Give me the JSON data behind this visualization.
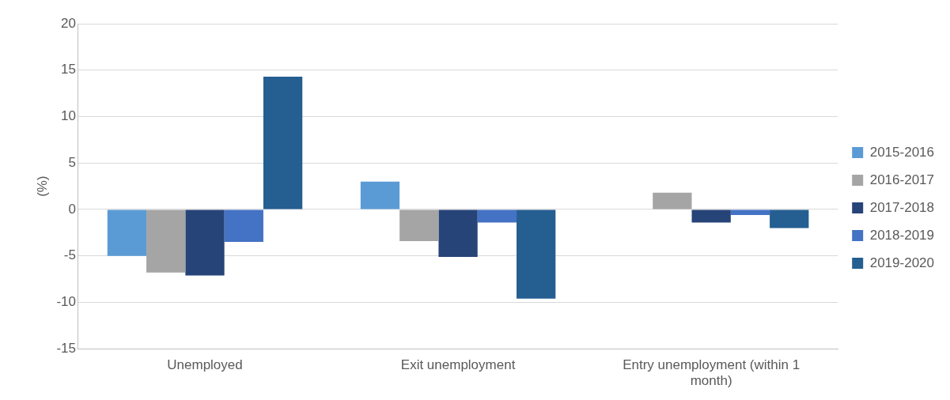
{
  "chart_data": {
    "type": "bar",
    "ylabel": "(%)",
    "categories": [
      "Unemployed",
      "Exit unemployment",
      "Entry unemployment (within 1 month)"
    ],
    "series": [
      {
        "name": "2015-2016",
        "color": "#5b9bd5",
        "values": [
          -5.0,
          3.0,
          0
        ]
      },
      {
        "name": "2016-2017",
        "color": "#a5a5a5",
        "values": [
          -6.8,
          -3.4,
          1.8
        ]
      },
      {
        "name": "2017-2018",
        "color": "#264478",
        "values": [
          -7.1,
          -5.1,
          -1.4
        ]
      },
      {
        "name": "2018-2019",
        "color": "#4472c4",
        "values": [
          -3.5,
          -1.4,
          -0.6
        ]
      },
      {
        "name": "2019-2020",
        "color": "#255e91",
        "values": [
          14.3,
          -9.6,
          -2.0
        ]
      }
    ],
    "ylim": [
      -15,
      20
    ],
    "yticks": [
      -15,
      -10,
      -5,
      0,
      5,
      10,
      15,
      20
    ],
    "grid": "y",
    "legend": "right"
  }
}
